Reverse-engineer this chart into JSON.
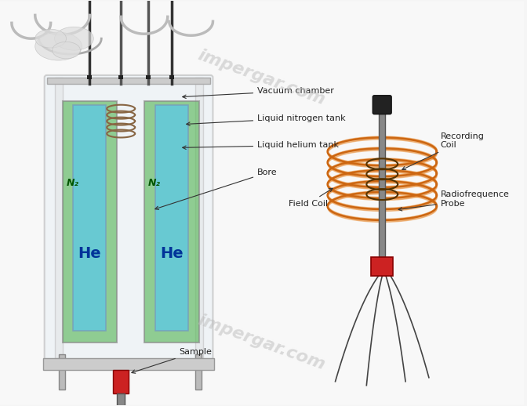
{
  "bg_color": "#f0f0f0",
  "title": "",
  "labels": {
    "vacuum_chamber": "Vacuum chamber",
    "liquid_nitrogen": "Liquid nitrogen tank",
    "liquid_helium": "Liquid helium tank",
    "bore": "Bore",
    "field_coil": "Field Coil",
    "sample": "Sample",
    "recording_coil": "Recording\nCoil",
    "radiofrequence": "Radiofrequence\nProbe"
  },
  "colors": {
    "n2_fill": "#5cb85c",
    "he_fill": "#5bc8e8",
    "outer_jacket": "#d0e8f0",
    "tank_wall": "#cccccc",
    "tank_outline": "#999999",
    "coil_orange": "#e8872a",
    "coil_red": "#cc3333",
    "coil_green": "#66aa44",
    "sample_red": "#cc2222",
    "probe_gray": "#888888",
    "probe_dark": "#444444",
    "wire_color": "#555555",
    "label_arrow": "#333333",
    "text_color": "#222222",
    "watermark": "#aaaaaa"
  },
  "watermark_text": "impergar.com"
}
